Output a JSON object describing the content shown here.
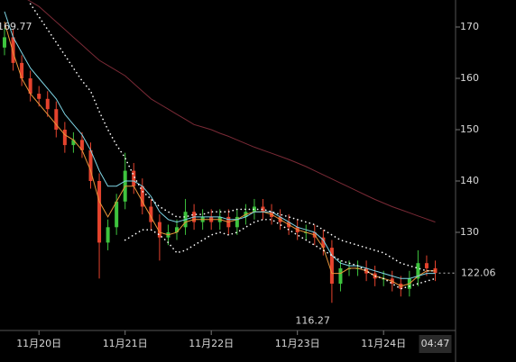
{
  "chart_data": {
    "type": "candlestick",
    "categories": [
      null,
      null,
      null,
      null,
      "11月20日",
      null,
      null,
      null,
      null,
      null,
      null,
      null,
      null,
      null,
      "11月21日",
      null,
      null,
      null,
      null,
      null,
      null,
      null,
      null,
      null,
      "11月22日",
      null,
      null,
      null,
      null,
      null,
      null,
      null,
      null,
      null,
      "11月23日",
      null,
      null,
      null,
      null,
      null,
      null,
      null,
      null,
      null,
      "11月24日",
      null,
      null,
      null,
      null,
      null,
      "04:47"
    ],
    "open": [
      166,
      168,
      163,
      160,
      157,
      156,
      154,
      150,
      147,
      148,
      146,
      140,
      128,
      131,
      136,
      142,
      139,
      135,
      132,
      129,
      130,
      131,
      134,
      132,
      133,
      132,
      133,
      131,
      133,
      134,
      135,
      134,
      133,
      132,
      131,
      130,
      130,
      129,
      127,
      120,
      123,
      123,
      123,
      122,
      121,
      121,
      120,
      119,
      121,
      124,
      123
    ],
    "high": [
      169.77,
      169.5,
      164.5,
      161.5,
      158.5,
      157.5,
      155.5,
      151.5,
      149.5,
      149.5,
      147.5,
      141.5,
      132.5,
      137.5,
      145.5,
      143.5,
      140.5,
      136.5,
      133.5,
      131.5,
      132.5,
      136.5,
      135.5,
      134.5,
      134.5,
      134.5,
      134.5,
      134.5,
      135.5,
      136.5,
      136.5,
      135.5,
      134.5,
      133.5,
      132.5,
      131.5,
      131.5,
      130.5,
      128.5,
      124.5,
      124.5,
      124.5,
      124.5,
      123.5,
      122.5,
      122.5,
      121.5,
      122.5,
      126.5,
      125.5,
      124.5
    ],
    "low": [
      164.5,
      161.5,
      158.5,
      155.5,
      154.5,
      152.5,
      148.5,
      145.5,
      145.5,
      144.5,
      138.5,
      121,
      126.5,
      129.5,
      134.5,
      137.5,
      133.5,
      130.5,
      124.5,
      127.5,
      128.5,
      129.5,
      130.5,
      130.5,
      130.5,
      130.5,
      129.5,
      129.5,
      131.5,
      132.5,
      132.5,
      131.5,
      130.5,
      129.5,
      128.5,
      128.5,
      127.5,
      125.5,
      116.27,
      118.5,
      121.5,
      121.5,
      120.5,
      119.5,
      119.5,
      118.5,
      117.5,
      117.5,
      119.5,
      121.5,
      120.5
    ],
    "close": [
      168,
      163,
      160,
      157,
      156,
      154,
      150,
      147,
      148,
      146,
      140,
      128,
      131,
      136,
      142,
      139,
      135,
      132,
      129,
      130,
      131,
      134,
      132,
      133,
      132,
      133,
      131,
      133,
      134,
      135,
      134,
      133,
      132,
      131,
      130,
      130,
      129,
      127,
      120,
      123,
      123,
      123,
      122,
      121,
      121,
      120,
      119,
      121,
      124,
      123,
      122.06
    ],
    "up_color": "#3ec43e",
    "down_color": "#e5432d",
    "series": [
      {
        "color": "#7a2a36",
        "style": "solid",
        "values": [
          178,
          177,
          176,
          175,
          174,
          172.5,
          171,
          169.5,
          168,
          166.5,
          165,
          163.5,
          162.5,
          161.5,
          160.5,
          159,
          157.5,
          156,
          155,
          154,
          153,
          152,
          151,
          150.5,
          150,
          149.3,
          148.7,
          148,
          147.3,
          146.6,
          146,
          145.4,
          144.8,
          144.2,
          143.5,
          142.8,
          142,
          141.2,
          140.4,
          139.6,
          138.8,
          138,
          137.2,
          136.4,
          135.7,
          135,
          134.4,
          133.8,
          133.2,
          132.6,
          132
        ]
      },
      {
        "color": "#e8953a",
        "style": "solid",
        "values": [
          171,
          165,
          160,
          157,
          155,
          153,
          151,
          149,
          148,
          146,
          142,
          136,
          133,
          136,
          139,
          139,
          136,
          133,
          130,
          129.5,
          130,
          132,
          132.5,
          132.5,
          132.5,
          132.5,
          132,
          132.5,
          133.5,
          134,
          134,
          133.5,
          132.5,
          131.5,
          130.5,
          130,
          129.5,
          127,
          122,
          122,
          123,
          123,
          122.5,
          121.5,
          121,
          120.5,
          119.5,
          120,
          121.5,
          122.5,
          122.5
        ]
      },
      {
        "color": "#7fd6e6",
        "style": "solid",
        "values": [
          173,
          168,
          165,
          162,
          160,
          158,
          156,
          153,
          151,
          149,
          146,
          142,
          139,
          139,
          140,
          140,
          139,
          137,
          134,
          132.5,
          132,
          132.5,
          133,
          133,
          133,
          133,
          132.5,
          132.5,
          133,
          134,
          134,
          134,
          133,
          132,
          131,
          130.5,
          130,
          128.5,
          125.5,
          124,
          123.5,
          123.5,
          123,
          122.5,
          122,
          121.5,
          121,
          121,
          121.5,
          122,
          122
        ]
      },
      {
        "color": "#ffffff",
        "style": "dotted",
        "values": [
          null,
          null,
          null,
          174.5,
          172,
          169.5,
          167,
          164.5,
          162,
          159.5,
          157.5,
          153.5,
          150,
          147,
          144.5,
          141,
          138,
          136.5,
          135,
          134,
          133,
          133,
          133.5,
          133.5,
          134,
          134,
          134,
          134.5,
          134.5,
          134.5,
          134.5,
          134,
          133.5,
          133,
          132.5,
          132,
          131.5,
          130.5,
          129.5,
          128.5,
          128,
          127.5,
          127,
          126.5,
          126,
          125,
          124,
          123.5,
          123,
          122.5,
          122.5
        ]
      },
      {
        "color": "#ffffff",
        "style": "dotted",
        "values": [
          null,
          null,
          null,
          null,
          null,
          null,
          null,
          null,
          null,
          null,
          null,
          null,
          null,
          null,
          128.5,
          129.5,
          130.5,
          130.5,
          129.5,
          128,
          126,
          126.5,
          127.5,
          128.5,
          129.5,
          130,
          129.5,
          130,
          131,
          132,
          132.5,
          132.5,
          131.5,
          130.5,
          129.5,
          128.5,
          127.5,
          126.5,
          125.5,
          124.5,
          124,
          123.5,
          122.5,
          121.5,
          121,
          120,
          119,
          119.5,
          120,
          120.5,
          121
        ]
      }
    ],
    "ylim": [
      110.88,
      175.26
    ],
    "yticks": [
      130,
      140,
      150,
      160,
      170
    ]
  }
}
